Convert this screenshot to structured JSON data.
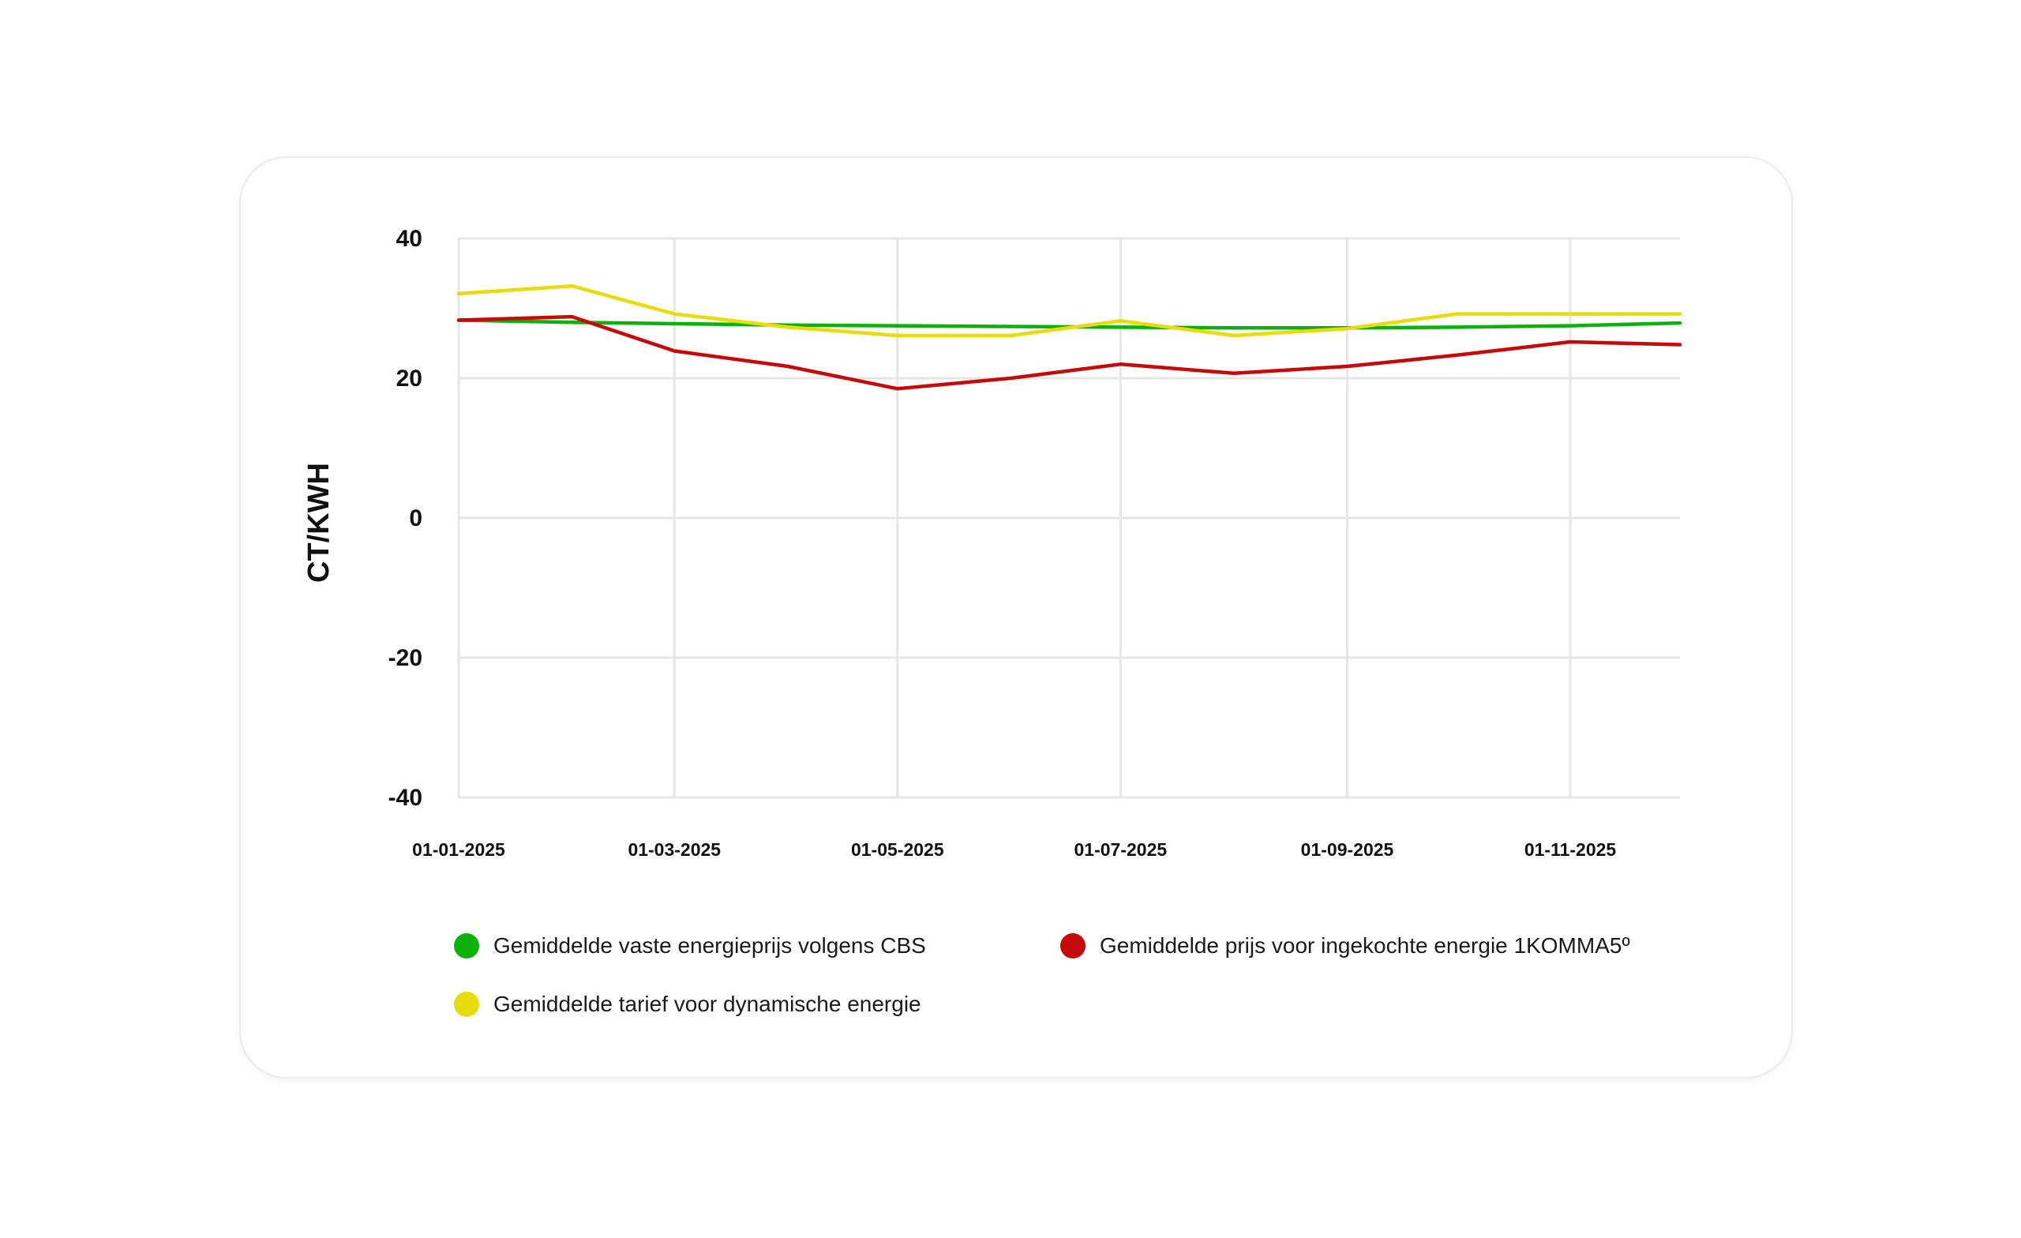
{
  "chart_data": {
    "type": "line",
    "ylabel": "CT/KWH",
    "xlabel": "",
    "title": "",
    "ylim": [
      -40,
      40
    ],
    "yticks": [
      40,
      20,
      0,
      -20,
      -40
    ],
    "xlim": [
      "2025-01-01",
      "2025-12-01"
    ],
    "xticks": [
      "01-01-2025",
      "01-03-2025",
      "01-05-2025",
      "01-07-2025",
      "01-09-2025",
      "01-11-2025"
    ],
    "grid": true,
    "legend_position": "bottom",
    "x": [
      "2025-01-01",
      "2025-02-01",
      "2025-03-01",
      "2025-04-01",
      "2025-05-01",
      "2025-06-01",
      "2025-07-01",
      "2025-08-01",
      "2025-09-01",
      "2025-10-01",
      "2025-11-01",
      "2025-12-01"
    ],
    "series": [
      {
        "name": "Gemiddelde vaste energieprijs volgens CBS",
        "color": "#0ab20a",
        "values": [
          28.3,
          28.0,
          27.8,
          27.6,
          27.5,
          27.4,
          27.3,
          27.2,
          27.2,
          27.3,
          27.5,
          27.9
        ]
      },
      {
        "name": "Gemiddelde prijs voor ingekochte energie 1KOMMA5º",
        "color": "#c40a0a",
        "values": [
          28.3,
          28.8,
          23.9,
          21.7,
          18.5,
          20.0,
          22.0,
          20.7,
          21.7,
          23.3,
          25.2,
          24.8
        ]
      },
      {
        "name": "Gemiddelde tarief voor dynamische energie",
        "color": "#e8dc0a",
        "values": [
          32.1,
          33.2,
          29.2,
          27.3,
          26.1,
          26.1,
          28.2,
          26.1,
          27.1,
          29.2,
          29.2,
          29.2
        ]
      }
    ],
    "legend": [
      "Gemiddelde vaste energieprijs volgens CBS",
      "Gemiddelde prijs voor ingekochte energie 1KOMMA5º",
      "Gemiddelde tarief voor dynamische energie"
    ]
  }
}
